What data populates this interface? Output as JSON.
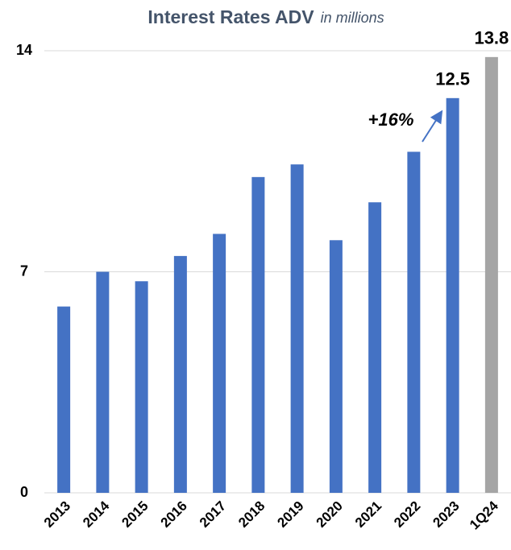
{
  "chart_data": {
    "type": "bar",
    "title": "Interest Rates ADV",
    "subtitle": "in millions",
    "categories": [
      "2013",
      "2014",
      "2015",
      "2016",
      "2017",
      "2018",
      "2019",
      "2020",
      "2021",
      "2022",
      "2023",
      "1Q24"
    ],
    "values": [
      5.9,
      7.0,
      6.7,
      7.5,
      8.2,
      10.0,
      10.4,
      8.0,
      9.2,
      10.8,
      12.5,
      13.8
    ],
    "value_labels": [
      null,
      null,
      null,
      null,
      null,
      null,
      null,
      null,
      null,
      null,
      "12.5",
      "13.8"
    ],
    "colors": [
      "#4472c4",
      "#4472c4",
      "#4472c4",
      "#4472c4",
      "#4472c4",
      "#4472c4",
      "#4472c4",
      "#4472c4",
      "#4472c4",
      "#4472c4",
      "#4472c4",
      "#a5a5a5"
    ],
    "annotations": [
      {
        "text": "+16%"
      }
    ],
    "ylim": [
      0,
      14
    ],
    "yticks": [
      0,
      7,
      14
    ],
    "grid": true
  }
}
